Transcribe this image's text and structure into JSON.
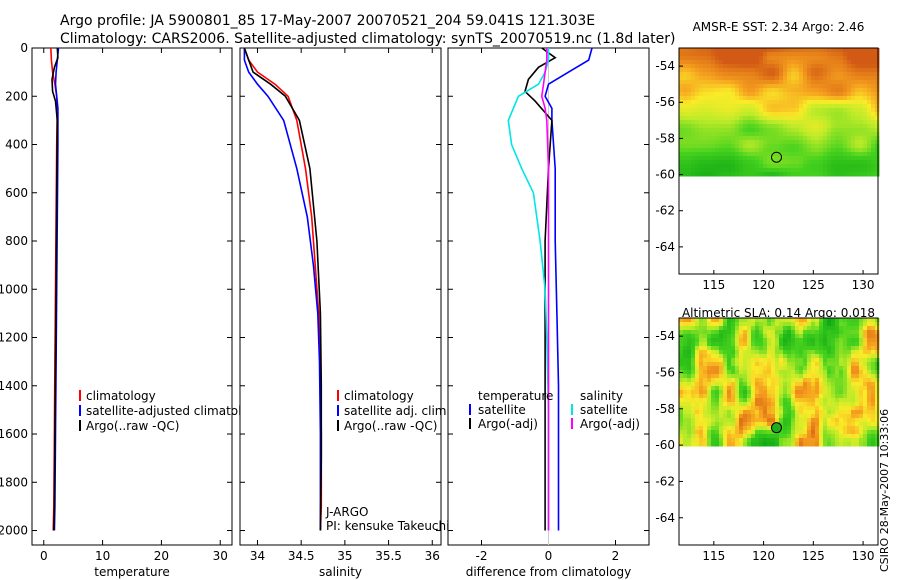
{
  "header": {
    "title_line1": "Argo profile: JA 5900801_85 17-May-2007 20070521_204 59.041S 121.303E",
    "title_line2": "Climatology: CARS2006. Satellite-adjusted climatology: synTS_20070519.nc (1.8d later)"
  },
  "footer": {
    "stamp": "CSIRO 28-May-2007 10:33:06"
  },
  "colors": {
    "climatology": "#ff0000",
    "satellite": "#0000ff",
    "argo": "#000000",
    "sat_sal_diff": "#00e5e5",
    "argo_sal_diff": "#ff00ff"
  },
  "chart_data": [
    {
      "id": "temperature",
      "type": "line",
      "xlabel": "temperature",
      "xlim": [
        -2,
        32
      ],
      "ylim": [
        2060,
        0
      ],
      "xticks": [
        0,
        10,
        20,
        30
      ],
      "yticks": [
        0,
        200,
        400,
        600,
        800,
        1000,
        1200,
        1400,
        1600,
        1800,
        2000
      ],
      "legend": [
        "climatology",
        "satellite-adjusted climatology",
        "Argo(..raw -QC)"
      ],
      "series": [
        {
          "name": "climatology",
          "color": "#ff0000",
          "x": [
            1.2,
            1.3,
            1.5,
            1.9,
            2.2,
            2.3,
            2.2,
            2.1,
            2.0,
            1.9,
            1.8,
            1.7,
            1.6
          ],
          "y": [
            0,
            50,
            100,
            150,
            200,
            250,
            400,
            700,
            1000,
            1300,
            1600,
            1900,
            2000
          ]
        },
        {
          "name": "satellite-adjusted climatology",
          "color": "#0000ff",
          "x": [
            2.5,
            2.3,
            2.1,
            2.0,
            2.2,
            2.4,
            2.4,
            2.3,
            2.2,
            2.1,
            2.0,
            1.9,
            1.8
          ],
          "y": [
            0,
            50,
            100,
            150,
            200,
            250,
            400,
            700,
            1000,
            1300,
            1600,
            1900,
            2000
          ]
        },
        {
          "name": "Argo(..raw -QC)",
          "color": "#000000",
          "x": [
            2.3,
            2.4,
            1.8,
            1.4,
            1.5,
            2.0,
            2.3,
            2.2,
            2.1,
            2.0,
            1.9,
            1.8,
            1.7
          ],
          "y": [
            0,
            40,
            80,
            130,
            180,
            220,
            300,
            600,
            1000,
            1300,
            1600,
            1900,
            2000
          ]
        }
      ]
    },
    {
      "id": "salinity",
      "type": "line",
      "xlabel": "salinity",
      "xlim": [
        33.8,
        36.1
      ],
      "ylim": [
        2060,
        0
      ],
      "xticks": [
        34,
        34.5,
        35,
        35.5,
        36
      ],
      "yticks": [
        0,
        200,
        400,
        600,
        800,
        1000,
        1200,
        1400,
        1600,
        1800,
        2000
      ],
      "legend": [
        "climatology",
        "satellite adj. clim.",
        "Argo(..raw -QC)"
      ],
      "annotation": [
        "J-ARGO",
        "PI: kensuke Takeuchi"
      ],
      "series": [
        {
          "name": "climatology",
          "color": "#ff0000",
          "x": [
            33.85,
            33.9,
            34.0,
            34.2,
            34.35,
            34.45,
            34.55,
            34.62,
            34.66,
            34.7,
            34.72,
            34.73,
            34.73,
            34.72
          ],
          "y": [
            0,
            50,
            100,
            150,
            200,
            300,
            500,
            700,
            900,
            1100,
            1300,
            1600,
            1900,
            2000
          ]
        },
        {
          "name": "satellite adj. clim.",
          "color": "#0000ff",
          "x": [
            33.85,
            33.85,
            33.9,
            34.0,
            34.12,
            34.3,
            34.45,
            34.57,
            34.64,
            34.69,
            34.71,
            34.72,
            34.72,
            34.72
          ],
          "y": [
            0,
            50,
            100,
            150,
            200,
            300,
            500,
            700,
            900,
            1100,
            1300,
            1600,
            1900,
            2000
          ]
        },
        {
          "name": "Argo(..raw -QC)",
          "color": "#000000",
          "x": [
            33.85,
            33.9,
            33.95,
            34.15,
            34.32,
            34.48,
            34.6,
            34.68,
            34.72,
            34.73,
            34.73,
            34.72
          ],
          "y": [
            0,
            50,
            100,
            150,
            200,
            300,
            500,
            800,
            1100,
            1400,
            1700,
            2000
          ]
        }
      ]
    },
    {
      "id": "difference",
      "type": "line",
      "xlabel": "difference from climatology",
      "xlim": [
        -3,
        3
      ],
      "ylim": [
        2060,
        0
      ],
      "xticks": [
        -2,
        0,
        2
      ],
      "yticks": [
        0,
        200,
        400,
        600,
        800,
        1000,
        1200,
        1400,
        1600,
        1800,
        2000
      ],
      "legend": [
        "temperature",
        "satellite",
        "Argo(-adj)",
        "salinity",
        "satellite",
        "Argo(-adj)"
      ],
      "series": [
        {
          "name": "temperature satellite",
          "color": "#0000ff",
          "x": [
            1.3,
            1.2,
            0.6,
            0.0,
            -0.1,
            0.1,
            0.1,
            0.2,
            0.2,
            0.25,
            0.3,
            0.3,
            0.3,
            0.3
          ],
          "y": [
            0,
            50,
            100,
            150,
            200,
            250,
            300,
            500,
            800,
            1100,
            1400,
            1700,
            1900,
            2000
          ]
        },
        {
          "name": "temperature Argo(-adj)",
          "color": "#000000",
          "x": [
            -0.2,
            0.2,
            -0.3,
            -0.6,
            -0.7,
            -0.4,
            0.1,
            0.0,
            -0.1,
            -0.1,
            -0.1,
            -0.1,
            -0.1,
            -0.1
          ],
          "y": [
            0,
            40,
            80,
            130,
            180,
            220,
            300,
            500,
            800,
            1100,
            1400,
            1700,
            1900,
            2000
          ]
        },
        {
          "name": "salinity satellite",
          "color": "#00e5e5",
          "x": [
            0.0,
            0.0,
            -0.1,
            -0.3,
            -0.9,
            -1.2,
            -1.1,
            -0.8,
            -0.45,
            -0.25,
            -0.1,
            -0.05,
            0.0,
            0.0,
            0.0
          ],
          "y": [
            0,
            50,
            100,
            150,
            200,
            300,
            400,
            500,
            600,
            800,
            1000,
            1200,
            1500,
            1800,
            2000
          ]
        },
        {
          "name": "salinity Argo(-adj)",
          "color": "#ff00ff",
          "x": [
            -0.05,
            -0.05,
            -0.1,
            -0.15,
            -0.2,
            -0.1,
            -0.05,
            0.0,
            0.0,
            0.0,
            0.0
          ],
          "y": [
            0,
            50,
            100,
            150,
            200,
            250,
            300,
            500,
            1000,
            1500,
            2000
          ]
        }
      ]
    },
    {
      "id": "sst_map",
      "type": "heatmap",
      "title": "AMSR-E SST: 2.34 Argo: 2.46",
      "xlim": [
        111.5,
        131.5
      ],
      "ylim": [
        -65.5,
        -53
      ],
      "xticks": [
        115,
        120,
        125,
        130
      ],
      "yticks": [
        -54,
        -56,
        -58,
        -60,
        -62,
        -64
      ],
      "data_lat_range": [
        -60,
        -53
      ],
      "float_position": {
        "lon": 121.3,
        "lat": -59.04
      }
    },
    {
      "id": "sla_map",
      "type": "heatmap",
      "title": "Altimetric SLA: 0.14 Argo: 0.018",
      "xlim": [
        111.5,
        131.5
      ],
      "ylim": [
        -65.5,
        -53
      ],
      "xticks": [
        115,
        120,
        125,
        130
      ],
      "yticks": [
        -54,
        -56,
        -58,
        -60,
        -62,
        -64
      ],
      "data_lat_range": [
        -60,
        -53
      ],
      "float_position": {
        "lon": 121.3,
        "lat": -59.04
      }
    }
  ]
}
